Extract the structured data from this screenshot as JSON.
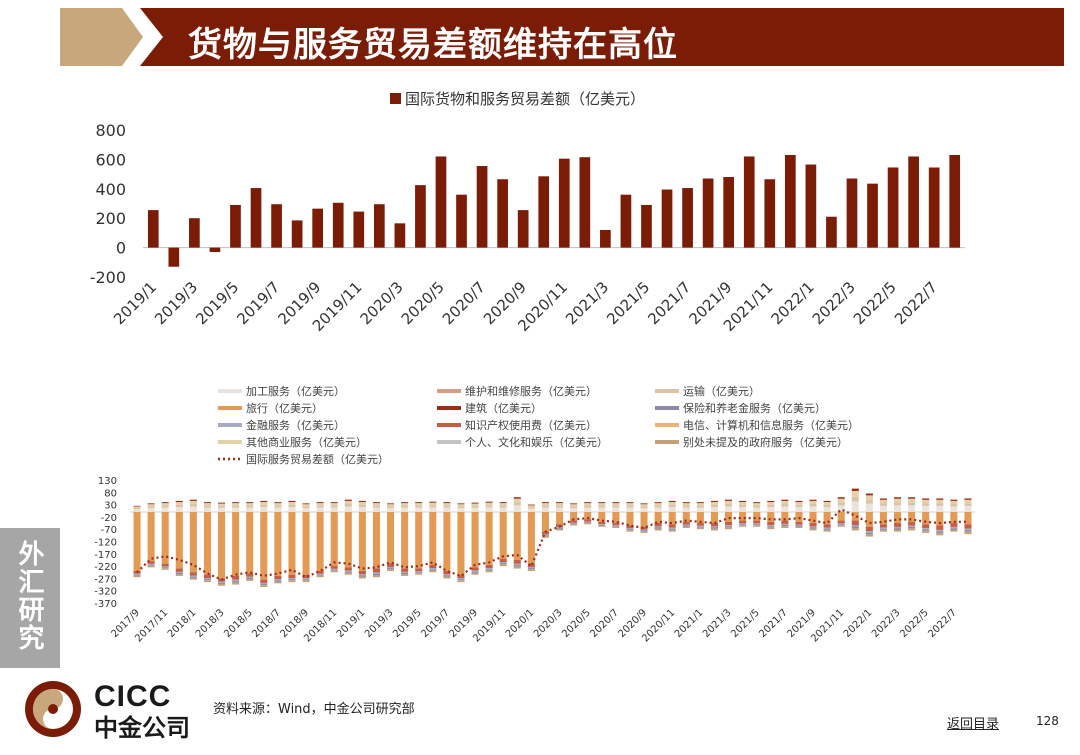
{
  "header": {
    "title": "货物与服务贸易差额维持在高位"
  },
  "sidebar": {
    "label": "外汇研究"
  },
  "logo": {
    "en": "CICC",
    "cn": "中金公司"
  },
  "footer": {
    "source": "资料来源：Wind，中金公司研究部",
    "back_link": "返回目录",
    "page_number": "128"
  },
  "colors": {
    "brand_red": "#7b1c06",
    "gold": "#c9a77c",
    "bar": "#7b1c06"
  },
  "chart_data": [
    {
      "type": "bar",
      "legend": "国际货物和服务贸易差额（亿美元）",
      "yticks": [
        "800",
        "600",
        "400",
        "200",
        "0",
        "-200"
      ],
      "ylim": [
        -200,
        800
      ],
      "xticks": [
        "2019/1",
        "2019/3",
        "2019/5",
        "2019/7",
        "2019/9",
        "2019/11",
        "2020/3",
        "2020/5",
        "2020/7",
        "2020/9",
        "2020/11",
        "2021/3",
        "2021/5",
        "2021/7",
        "2021/9",
        "2021/11",
        "2022/1",
        "2022/3",
        "2022/5",
        "2022/7"
      ],
      "categories": [
        "2019/1",
        "2019/2",
        "2019/3",
        "2019/4",
        "2019/5",
        "2019/6",
        "2019/7",
        "2019/8",
        "2019/9",
        "2019/10",
        "2019/11",
        "2019/12",
        "2020/3",
        "2020/4",
        "2020/5",
        "2020/6",
        "2020/7",
        "2020/8",
        "2020/9",
        "2020/10",
        "2020/11",
        "2020/12",
        "2021/3",
        "2021/4",
        "2021/5",
        "2021/6",
        "2021/7",
        "2021/8",
        "2021/9",
        "2021/10",
        "2021/11",
        "2021/12",
        "2022/1",
        "2022/2",
        "2022/3",
        "2022/4",
        "2022/5",
        "2022/6",
        "2022/7",
        "2022/8"
      ],
      "values": [
        255,
        -130,
        200,
        -30,
        290,
        405,
        295,
        185,
        265,
        305,
        245,
        295,
        165,
        425,
        620,
        360,
        555,
        465,
        255,
        485,
        605,
        615,
        120,
        360,
        290,
        395,
        405,
        470,
        480,
        620,
        465,
        630,
        565,
        210,
        470,
        435,
        545,
        620,
        545,
        630
      ]
    },
    {
      "type": "bar-stacked-line",
      "legend": [
        {
          "label": "加工服务（亿美元）",
          "color": "#e8e3de"
        },
        {
          "label": "维护和维修服务（亿美元）",
          "color": "#dc9a84"
        },
        {
          "label": "运输（亿美元）",
          "color": "#ddc3a5"
        },
        {
          "label": "旅行（亿美元）",
          "color": "#e39a55"
        },
        {
          "label": "建筑（亿美元）",
          "color": "#9e2a18"
        },
        {
          "label": "保险和养老金服务（亿美元）",
          "color": "#8a8aa8"
        },
        {
          "label": "金融服务（亿美元）",
          "color": "#a9a9c4"
        },
        {
          "label": "知识产权使用费（亿美元）",
          "color": "#c65d45"
        },
        {
          "label": "电信、计算机和信息服务（亿美元）",
          "color": "#edb27a"
        },
        {
          "label": "其他商业服务（亿美元）",
          "color": "#e2d2a8"
        },
        {
          "label": "个人、文化和娱乐（亿美元）",
          "color": "#c4c4c4"
        },
        {
          "label": "别处未提及的政府服务（亿美元）",
          "color": "#c2a079"
        },
        {
          "label": "国际服务贸易差额（亿美元）",
          "color": "#9e2a18"
        }
      ],
      "yticks": [
        "130",
        "80",
        "30",
        "-20",
        "-70",
        "-120",
        "-170",
        "-220",
        "-270",
        "-320",
        "-370"
      ],
      "ylim": [
        -370,
        130
      ],
      "xticks": [
        "2017/9",
        "2017/11",
        "2018/1",
        "2018/3",
        "2018/5",
        "2018/7",
        "2018/9",
        "2018/11",
        "2019/1",
        "2019/3",
        "2019/5",
        "2019/7",
        "2019/9",
        "2019/11",
        "2020/1",
        "2020/3",
        "2020/5",
        "2020/7",
        "2020/9",
        "2020/11",
        "2021/1",
        "2021/3",
        "2021/5",
        "2021/7",
        "2021/9",
        "2021/11",
        "2022/1",
        "2022/3",
        "2022/5",
        "2022/7"
      ],
      "months": [
        "2017/9",
        "2017/10",
        "2017/11",
        "2017/12",
        "2018/1",
        "2018/2",
        "2018/3",
        "2018/4",
        "2018/5",
        "2018/6",
        "2018/7",
        "2018/8",
        "2018/9",
        "2018/10",
        "2018/11",
        "2018/12",
        "2019/1",
        "2019/2",
        "2019/3",
        "2019/4",
        "2019/5",
        "2019/6",
        "2019/7",
        "2019/8",
        "2019/9",
        "2019/10",
        "2019/11",
        "2019/12",
        "2020/1",
        "2020/2",
        "2020/3",
        "2020/4",
        "2020/5",
        "2020/6",
        "2020/7",
        "2020/8",
        "2020/9",
        "2020/10",
        "2020/11",
        "2020/12",
        "2021/1",
        "2021/2",
        "2021/3",
        "2021/4",
        "2021/5",
        "2021/6",
        "2021/7",
        "2021/8",
        "2021/9",
        "2021/10",
        "2021/11",
        "2021/12",
        "2022/1",
        "2022/2",
        "2022/3",
        "2022/4",
        "2022/5",
        "2022/6",
        "2022/7",
        "2022/8"
      ],
      "positive_total": [
        25,
        35,
        40,
        45,
        50,
        40,
        38,
        40,
        40,
        45,
        40,
        45,
        35,
        40,
        40,
        50,
        45,
        40,
        35,
        40,
        40,
        42,
        40,
        35,
        38,
        42,
        40,
        60,
        30,
        40,
        40,
        35,
        40,
        40,
        40,
        40,
        35,
        40,
        45,
        40,
        40,
        45,
        50,
        45,
        40,
        45,
        50,
        45,
        50,
        45,
        60,
        95,
        75,
        55,
        60,
        60,
        55,
        55,
        50,
        55
      ],
      "travel": [
        -240,
        -200,
        -210,
        -230,
        -245,
        -255,
        -270,
        -260,
        -250,
        -275,
        -260,
        -255,
        -255,
        -240,
        -220,
        -225,
        -240,
        -230,
        -210,
        -230,
        -230,
        -215,
        -240,
        -255,
        -225,
        -215,
        -190,
        -195,
        -210,
        -80,
        -50,
        -35,
        -30,
        -40,
        -45,
        -55,
        -60,
        -45,
        -50,
        -40,
        -45,
        -45,
        -40,
        -35,
        -35,
        -40,
        -35,
        -40,
        -45,
        -50,
        -35,
        -35,
        -60,
        -50,
        -45,
        -40,
        -50,
        -55,
        -45,
        -50
      ],
      "other_negative": [
        -25,
        -25,
        -25,
        -30,
        -30,
        -30,
        -30,
        -35,
        -30,
        -30,
        -30,
        -30,
        -30,
        -25,
        -25,
        -30,
        -30,
        -35,
        -30,
        -30,
        -25,
        -30,
        -30,
        -30,
        -30,
        -30,
        -30,
        -35,
        -30,
        -25,
        -25,
        -20,
        -20,
        -20,
        -20,
        -25,
        -25,
        -30,
        -30,
        -25,
        -25,
        -30,
        -30,
        -25,
        -25,
        -30,
        -30,
        -25,
        -30,
        -30,
        -25,
        -40,
        -40,
        -30,
        -35,
        -35,
        -35,
        -40,
        -35,
        -40
      ],
      "services_balance": [
        -245,
        -190,
        -180,
        -195,
        -215,
        -250,
        -275,
        -255,
        -245,
        -260,
        -250,
        -235,
        -265,
        -240,
        -205,
        -210,
        -230,
        -225,
        -205,
        -225,
        -220,
        -205,
        -240,
        -260,
        -215,
        -205,
        -180,
        -175,
        -220,
        -80,
        -60,
        -30,
        -25,
        -35,
        -40,
        -55,
        -65,
        -40,
        -45,
        -35,
        -40,
        -45,
        -25,
        -25,
        -25,
        -30,
        -30,
        -25,
        -35,
        -45,
        10,
        -15,
        -45,
        -40,
        -30,
        -30,
        -40,
        -45,
        -40,
        -40
      ]
    }
  ]
}
